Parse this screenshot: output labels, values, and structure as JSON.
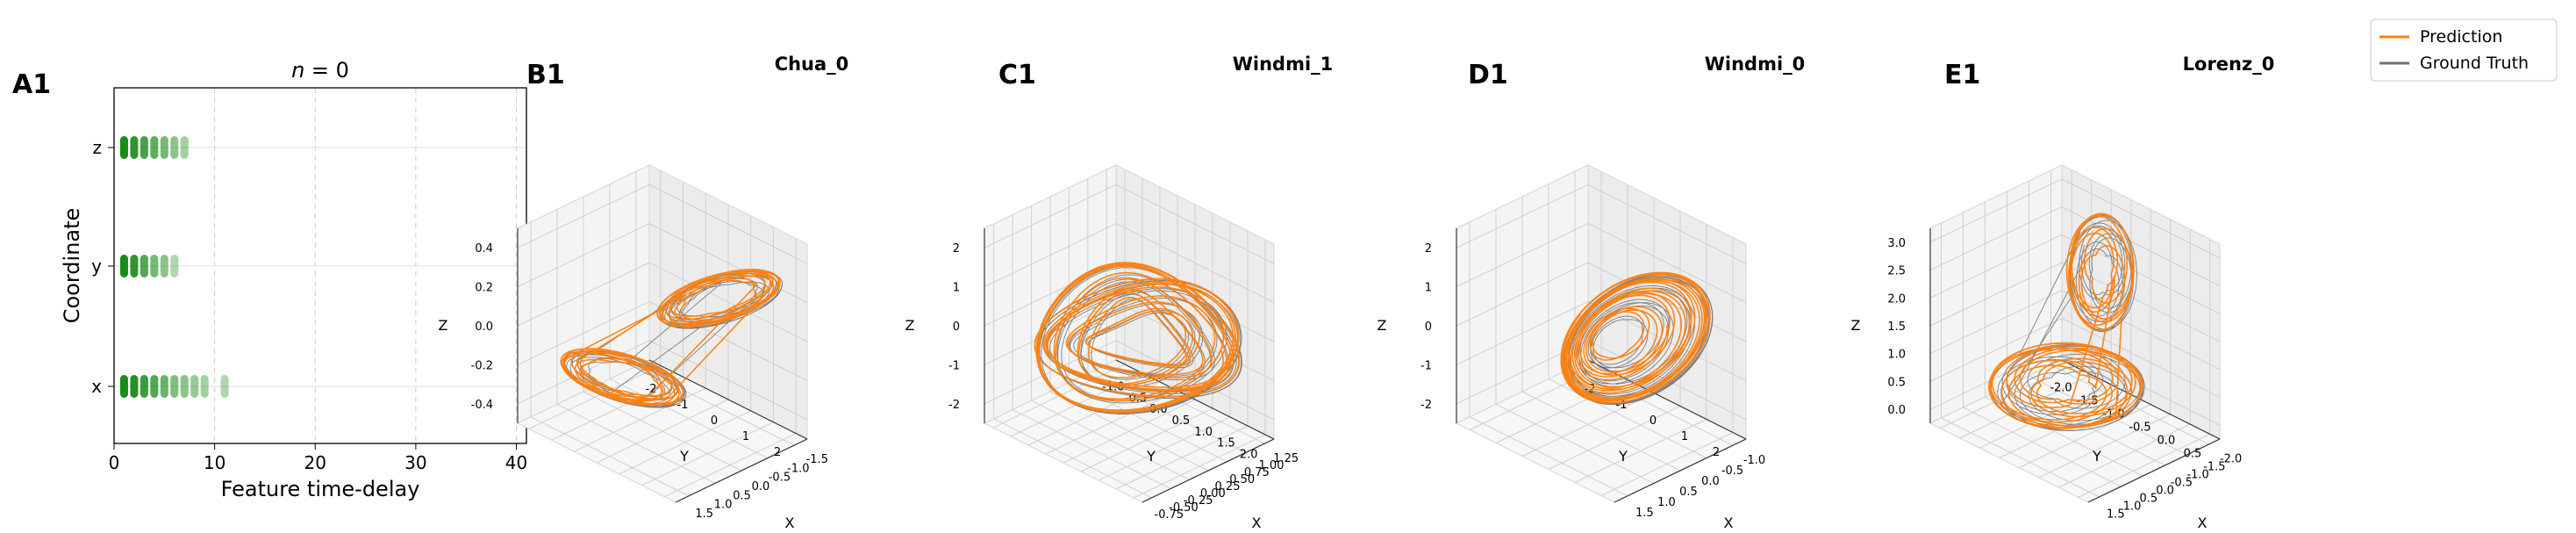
{
  "chart_data": [
    {
      "panel_label": "A1",
      "type": "scatter",
      "title": "n = 0",
      "xlabel": "Feature time-delay",
      "ylabel": "Coordinate",
      "xlim": [
        0,
        41
      ],
      "xticks": [
        0,
        10,
        20,
        30,
        40
      ],
      "categories": [
        "x",
        "y",
        "z"
      ],
      "grid": true,
      "series": [
        {
          "coordinate": "x",
          "delays": [
            1,
            2,
            3,
            4,
            5,
            6,
            7,
            8,
            9,
            11
          ],
          "alphas": [
            1,
            0.95,
            0.85,
            0.75,
            0.65,
            0.55,
            0.5,
            0.45,
            0.4,
            0.35
          ]
        },
        {
          "coordinate": "y",
          "delays": [
            1,
            2,
            3,
            4,
            5,
            6
          ],
          "alphas": [
            1,
            0.9,
            0.75,
            0.6,
            0.5,
            0.35
          ]
        },
        {
          "coordinate": "z",
          "delays": [
            1,
            2,
            3,
            4,
            5,
            6,
            7
          ],
          "alphas": [
            1,
            0.9,
            0.8,
            0.7,
            0.6,
            0.5,
            0.4
          ]
        }
      ],
      "color": "#1a8a1a"
    },
    {
      "panel_label": "B1",
      "type": "line3d",
      "title": "Chua_0",
      "xlabel": "X",
      "ylabel": "Y",
      "zlabel": "Z",
      "xticks": [
        "-1.5",
        "-1.0",
        "-0.5",
        "0.0",
        "0.5",
        "1.0",
        "1.5"
      ],
      "yticks": [
        "-2",
        "-1",
        "0",
        "1",
        "2"
      ],
      "zticks": [
        "-0.4",
        "-0.2",
        "0.0",
        "0.2",
        "0.4"
      ]
    },
    {
      "panel_label": "C1",
      "type": "line3d",
      "title": "Windmi_1",
      "xlabel": "X",
      "ylabel": "Y",
      "zlabel": "Z",
      "xticks": [
        "1.25",
        "1.00",
        "0.75",
        "0.50",
        "0.25",
        "0.00",
        "-0.25",
        "-0.50",
        "-0.75"
      ],
      "yticks": [
        "-1.0",
        "-0.5",
        "0.0",
        "0.5",
        "1.0",
        "1.5",
        "2.0"
      ],
      "zticks": [
        "-2",
        "-1",
        "0",
        "1",
        "2"
      ]
    },
    {
      "panel_label": "D1",
      "type": "line3d",
      "title": "Windmi_0",
      "xlabel": "X",
      "ylabel": "Y",
      "zlabel": "Z",
      "xticks": [
        "-1.0",
        "-0.5",
        "0.0",
        "0.5",
        "1.0",
        "1.5"
      ],
      "yticks": [
        "-2",
        "-1",
        "0",
        "1",
        "2"
      ],
      "zticks": [
        "-2",
        "-1",
        "0",
        "1",
        "2"
      ]
    },
    {
      "panel_label": "E1",
      "type": "line3d",
      "title": "Lorenz_0",
      "xlabel": "X",
      "ylabel": "Y",
      "zlabel": "Z",
      "xticks": [
        "-2.0",
        "-1.5",
        "-1.0",
        "-0.5",
        "0.0",
        "0.5",
        "1.0",
        "1.5"
      ],
      "yticks": [
        "-2.0",
        "-1.5",
        "-1.0",
        "-0.5",
        "0.0",
        "0.5"
      ],
      "zticks": [
        "0.0",
        "0.5",
        "1.0",
        "1.5",
        "2.0",
        "2.5",
        "3.0"
      ]
    }
  ],
  "legend": {
    "placement": "top-right",
    "entries": [
      {
        "label": "Prediction",
        "color": "#ff7f0e"
      },
      {
        "label": "Ground Truth",
        "color": "#707070"
      }
    ]
  }
}
